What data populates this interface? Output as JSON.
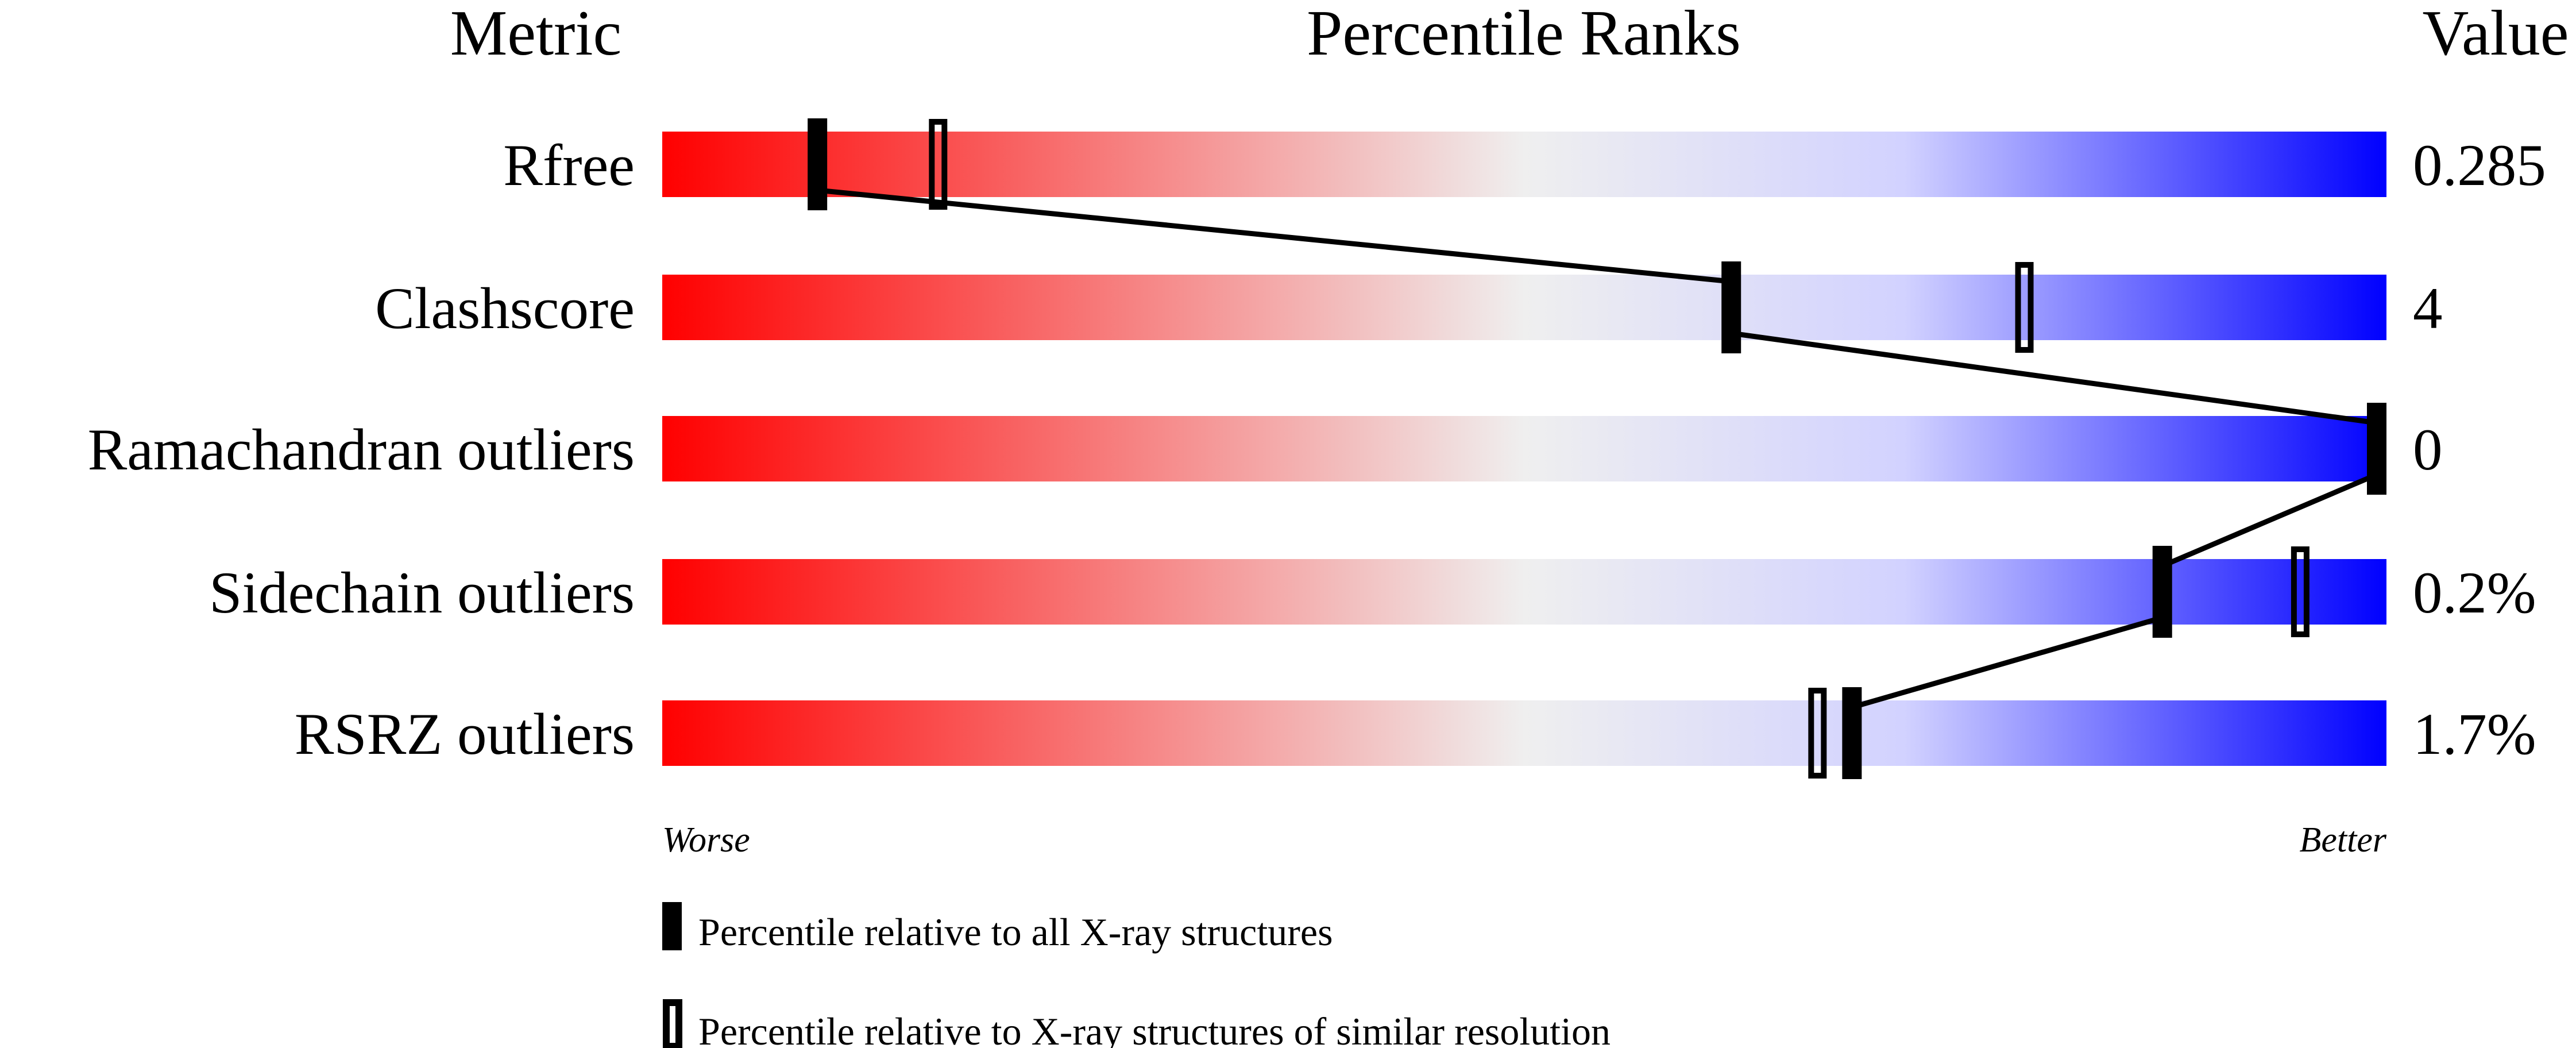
{
  "chart_data": {
    "type": "percentile-slider",
    "headers": {
      "metric": "Metric",
      "ranks": "Percentile Ranks",
      "value": "Value"
    },
    "xlim": [
      0,
      100
    ],
    "scale_labels": {
      "low": "Worse",
      "high": "Better"
    },
    "gradient_colors": [
      "#ff0000",
      "#f0f0f0",
      "#d0d0ff",
      "#0000ff"
    ],
    "rows": [
      {
        "metric": "Rfree",
        "value": "0.285",
        "percentile_all": 9,
        "percentile_similar": 16
      },
      {
        "metric": "Clashscore",
        "value": "4",
        "percentile_all": 62,
        "percentile_similar": 79
      },
      {
        "metric": "Ramachandran outliers",
        "value": "0",
        "percentile_all": 100,
        "percentile_similar": 100
      },
      {
        "metric": "Sidechain outliers",
        "value": "0.2%",
        "percentile_all": 87,
        "percentile_similar": 95
      },
      {
        "metric": "RSRZ outliers",
        "value": "1.7%",
        "percentile_all": 69,
        "percentile_similar": 67
      }
    ],
    "legend": [
      {
        "marker": "filled",
        "label": "Percentile relative to all X-ray structures"
      },
      {
        "marker": "hollow",
        "label": "Percentile relative to X-ray structures of similar resolution"
      }
    ]
  }
}
